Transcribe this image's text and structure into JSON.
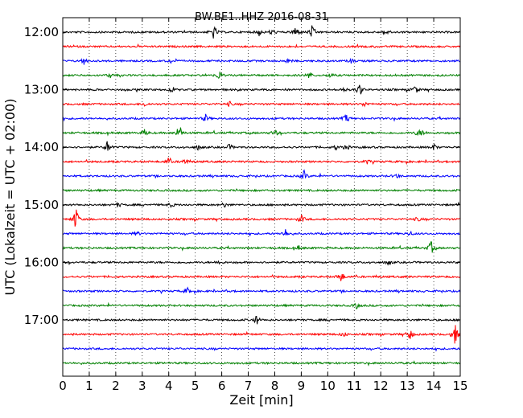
{
  "chart_data": {
    "type": "line",
    "title": "BW.BE1..HHZ 2016-08-31",
    "xlabel": "Zeit  [min]",
    "ylabel": "UTC (Lokalzeit = UTC + 02:00)",
    "xlim": [
      0,
      15
    ],
    "x_ticks": [
      "0",
      "1",
      "2",
      "3",
      "4",
      "5",
      "6",
      "7",
      "8",
      "9",
      "10",
      "11",
      "12",
      "13",
      "14",
      "15"
    ],
    "y_ticks": [
      "12:00",
      "13:00",
      "14:00",
      "15:00",
      "16:00",
      "17:00"
    ],
    "grid": "vertical dotted",
    "line_colors": [
      "#000000",
      "#ff0000",
      "#0000ff",
      "#008000"
    ],
    "series": [
      {
        "start": "12:00",
        "events": [
          [
            5.7,
            1.0
          ],
          [
            7.4,
            0.5
          ],
          [
            7.9,
            0.5
          ],
          [
            8.8,
            1.0
          ],
          [
            9.4,
            0.8
          ],
          [
            12.2,
            0.5
          ]
        ]
      },
      {
        "start": "12:15",
        "events": []
      },
      {
        "start": "12:30",
        "events": [
          [
            0.8,
            0.5
          ],
          [
            4.1,
            0.3
          ],
          [
            8.5,
            0.3
          ],
          [
            10.9,
            0.3
          ]
        ]
      },
      {
        "start": "12:45",
        "events": [
          [
            1.8,
            0.3
          ],
          [
            5.9,
            0.6
          ],
          [
            9.3,
            0.5
          ],
          [
            10.1,
            0.3
          ]
        ]
      },
      {
        "start": "13:00",
        "events": [
          [
            4.1,
            0.3
          ],
          [
            10.6,
            0.3
          ],
          [
            11.2,
            0.9
          ],
          [
            13.3,
            0.6
          ]
        ]
      },
      {
        "start": "13:15",
        "events": [
          [
            3.1,
            0.3
          ],
          [
            6.3,
            0.3
          ],
          [
            11.4,
            0.3
          ]
        ]
      },
      {
        "start": "13:30",
        "events": [
          [
            5.4,
            0.5
          ],
          [
            10.7,
            0.6
          ]
        ]
      },
      {
        "start": "13:45",
        "events": [
          [
            3.1,
            0.5
          ],
          [
            4.4,
            1.2
          ],
          [
            8.0,
            0.5
          ],
          [
            13.4,
            0.4
          ],
          [
            13.6,
            0.4
          ]
        ]
      },
      {
        "start": "14:00",
        "events": [
          [
            1.7,
            0.9
          ],
          [
            5.1,
            0.3
          ],
          [
            6.3,
            0.4
          ],
          [
            10.3,
            0.3
          ],
          [
            10.7,
            0.4
          ],
          [
            14.0,
            0.4
          ]
        ]
      },
      {
        "start": "14:15",
        "events": [
          [
            4.0,
            0.5
          ],
          [
            4.6,
            0.4
          ],
          [
            11.5,
            0.3
          ]
        ]
      },
      {
        "start": "14:30",
        "events": [
          [
            9.1,
            0.7
          ],
          [
            12.6,
            0.3
          ]
        ]
      },
      {
        "start": "14:45",
        "events": []
      },
      {
        "start": "15:00",
        "events": [
          [
            2.1,
            0.3
          ],
          [
            4.1,
            0.3
          ],
          [
            6.1,
            0.3
          ]
        ]
      },
      {
        "start": "15:15",
        "events": [
          [
            0.5,
            1.6
          ],
          [
            9.0,
            0.6
          ],
          [
            13.4,
            0.3
          ]
        ]
      },
      {
        "start": "15:30",
        "events": [
          [
            2.8,
            0.3
          ],
          [
            8.4,
            0.6
          ],
          [
            13.1,
            0.3
          ]
        ]
      },
      {
        "start": "15:45",
        "events": [
          [
            8.9,
            0.3
          ],
          [
            13.9,
            0.9
          ]
        ]
      },
      {
        "start": "16:00",
        "events": [
          [
            5.9,
            0.3
          ],
          [
            12.3,
            0.3
          ]
        ]
      },
      {
        "start": "16:15",
        "events": [
          [
            10.5,
            0.8
          ]
        ]
      },
      {
        "start": "16:30",
        "events": [
          [
            4.7,
            0.4
          ]
        ]
      },
      {
        "start": "16:45",
        "events": [
          [
            11.1,
            0.4
          ]
        ]
      },
      {
        "start": "17:00",
        "events": [
          [
            7.3,
            0.7
          ]
        ]
      },
      {
        "start": "17:15",
        "events": [
          [
            10.6,
            0.4
          ],
          [
            13.1,
            0.8
          ],
          [
            14.8,
            1.4
          ]
        ]
      },
      {
        "start": "17:30",
        "events": []
      },
      {
        "start": "17:45",
        "events": []
      }
    ]
  }
}
